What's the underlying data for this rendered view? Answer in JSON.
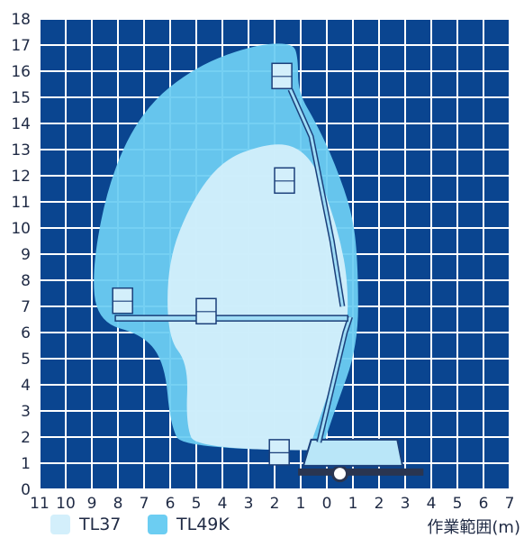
{
  "chart_data": {
    "type": "area",
    "x_tick_labels": [
      "11",
      "10",
      "9",
      "8",
      "7",
      "6",
      "5",
      "4",
      "3",
      "2",
      "1",
      "0",
      "1",
      "2",
      "3",
      "4",
      "5",
      "6",
      "7"
    ],
    "y_ticks": [
      0,
      1,
      2,
      3,
      4,
      5,
      6,
      7,
      8,
      9,
      10,
      11,
      12,
      13,
      14,
      15,
      16,
      17,
      18
    ],
    "x_range": [
      -11,
      7
    ],
    "y_range": [
      0,
      18
    ],
    "xlabel": "作業範囲(m)",
    "ylabel": "",
    "grid": true,
    "legend_position": "bottom-left",
    "series": [
      {
        "name": "TL49K",
        "color": "#6ccdf2",
        "outline": [
          [
            -0.2,
            1.5
          ],
          [
            -5.5,
            1.5
          ],
          [
            -6,
            2.5
          ],
          [
            -6.2,
            4.8
          ],
          [
            -7,
            5.9
          ],
          [
            -8.8,
            6.4
          ],
          [
            -9,
            8.5
          ],
          [
            -8.3,
            12
          ],
          [
            -7,
            14.6
          ],
          [
            -5,
            16.2
          ],
          [
            -2.8,
            17
          ],
          [
            -1.3,
            17.1
          ],
          [
            -1.1,
            16.5
          ],
          [
            -1.1,
            15.2
          ],
          [
            -0.4,
            14
          ],
          [
            0.3,
            12.5
          ],
          [
            1,
            10.5
          ],
          [
            1.2,
            8.5
          ],
          [
            1.2,
            5.5
          ],
          [
            0.3,
            3
          ],
          [
            -0.2,
            1.5
          ]
        ]
      },
      {
        "name": "TL37",
        "color": "#d3effb",
        "outline": [
          [
            -0.7,
            1.5
          ],
          [
            -5,
            1.5
          ],
          [
            -5.4,
            2.5
          ],
          [
            -5.3,
            4.8
          ],
          [
            -6.1,
            5.8
          ],
          [
            -6.1,
            8.7
          ],
          [
            -5.2,
            11
          ],
          [
            -4,
            12.6
          ],
          [
            -2.4,
            13.2
          ],
          [
            -1.3,
            13.2
          ],
          [
            -0.5,
            12.5
          ],
          [
            0,
            11.2
          ],
          [
            0.5,
            9.6
          ],
          [
            0.8,
            8
          ],
          [
            0.8,
            6
          ],
          [
            0,
            3.5
          ],
          [
            -0.7,
            1.5
          ]
        ]
      }
    ]
  },
  "legend": {
    "tl37": {
      "label": "TL37",
      "color": "#d3effb"
    },
    "tl49k": {
      "label": "TL49K",
      "color": "#6ccdf2"
    }
  },
  "axis": {
    "unit_label": "作業範囲(m)"
  }
}
